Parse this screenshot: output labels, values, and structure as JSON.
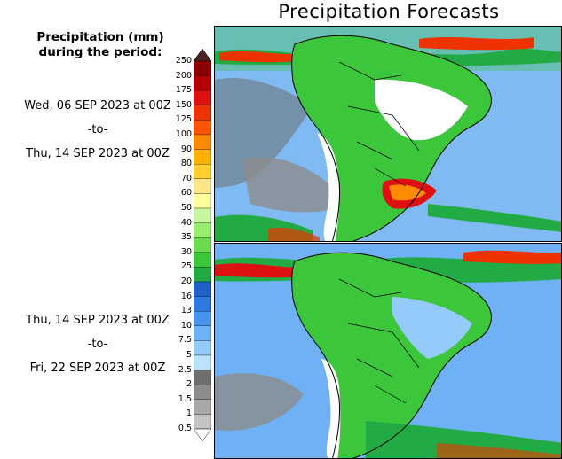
{
  "title": "Precipitation Forecasts",
  "legend": {
    "heading_line1": "Precipitation (mm)",
    "heading_line2": "during the period:",
    "units": "mm",
    "levels": [
      "250",
      "200",
      "175",
      "150",
      "125",
      "100",
      "90",
      "80",
      "70",
      "60",
      "50",
      "40",
      "35",
      "30",
      "25",
      "20",
      "16",
      "13",
      "10",
      "7.5",
      "5",
      "2.5",
      "2",
      "1.5",
      "1",
      "0.5"
    ],
    "colors": [
      "#4a2020",
      "#8b0000",
      "#b30000",
      "#dd1111",
      "#ee3300",
      "#ff5500",
      "#ff8a00",
      "#ffb000",
      "#ffcf30",
      "#fde68a",
      "#ffffa0",
      "#c8f5a0",
      "#98ec70",
      "#6cd94e",
      "#3cc63c",
      "#22aa44",
      "#1f5fc6",
      "#2f78e0",
      "#4792ee",
      "#6fb1f5",
      "#95cbfa",
      "#bce1fb",
      "#6e6e6e",
      "#8c8c8c",
      "#a8a8a8",
      "#c4c4c4",
      "#ffffff"
    ]
  },
  "periods": [
    {
      "name": "period-1",
      "start": "Wed, 06 SEP 2023 at 00Z",
      "sep": "-to-",
      "end": "Thu, 14 SEP 2023 at 00Z"
    },
    {
      "name": "period-2",
      "start": "Thu, 14 SEP 2023 at 00Z",
      "sep": "-to-",
      "end": "Fri, 22 SEP 2023 at 00Z"
    }
  ]
}
